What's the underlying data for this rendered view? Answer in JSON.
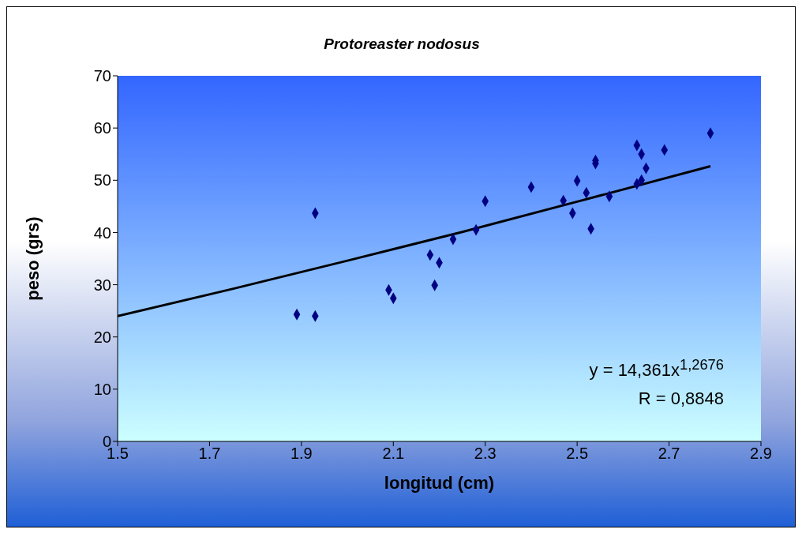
{
  "chart_data": {
    "type": "scatter",
    "title": "Protoreaster nodosus",
    "xlabel": "longitud (cm)",
    "ylabel": "peso (grs)",
    "xlim": [
      1.5,
      2.9
    ],
    "xticks": [
      1.5,
      1.7,
      1.9,
      2.1,
      2.3,
      2.5,
      2.7,
      2.9
    ],
    "ylim": [
      0,
      70
    ],
    "yticks": [
      0,
      10,
      20,
      30,
      40,
      50,
      60,
      70
    ],
    "grid": false,
    "marker": "diamond",
    "annotations": [
      "y = 14,361x$^{1,2676}$",
      "R = 0,8848"
    ],
    "series": [
      {
        "color": "#000080",
        "x": [
          1.89,
          1.93,
          1.93,
          2.09,
          2.1,
          2.18,
          2.2,
          2.19,
          2.23,
          2.28,
          2.3,
          2.4,
          2.47,
          2.5,
          2.49,
          2.52,
          2.53,
          2.54,
          2.54,
          2.57,
          2.63,
          2.64,
          2.65,
          2.63,
          2.64,
          2.69,
          2.79
        ],
        "values": [
          24.3,
          24.0,
          43.7,
          29.0,
          27.4,
          35.7,
          34.2,
          29.9,
          38.7,
          40.5,
          46.0,
          48.7,
          46.1,
          49.9,
          43.7,
          47.6,
          40.7,
          53.8,
          53.2,
          46.9,
          56.7,
          55.0,
          52.3,
          49.3,
          50.0,
          55.8,
          59.0
        ]
      },
      {
        "type": "line",
        "color": "#000000",
        "line_style": "solid",
        "marker": "none",
        "x": [
          1.5,
          1.75,
          2.0,
          2.25,
          2.5,
          2.79
        ],
        "values": [
          24.0,
          29.2,
          34.6,
          40.1,
          45.9,
          52.7
        ]
      }
    ]
  }
}
